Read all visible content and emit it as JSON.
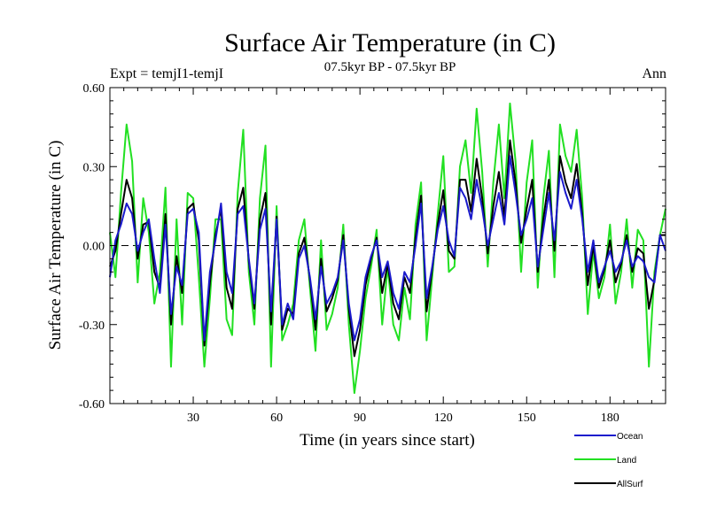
{
  "chart_data": {
    "type": "line",
    "title": "Surface Air Temperature (in C)",
    "subtitle": "07.5kyr BP - 07.5kyr BP",
    "left_label": "Expt = temjI1-temjI",
    "right_label": "Ann",
    "xlabel": "Time (in years since start)",
    "ylabel": "Surface Air Temperature (in C)",
    "xlim": [
      0,
      200
    ],
    "ylim": [
      -0.6,
      0.6
    ],
    "xticks": [
      30,
      60,
      90,
      120,
      150,
      180
    ],
    "yticks": [
      -0.6,
      -0.3,
      0.0,
      0.3,
      0.6
    ],
    "ytick_labels": [
      "-0.60",
      "-0.30",
      "0.00",
      "0.30",
      "0.60"
    ],
    "zero_line": "dashed",
    "legend_position": "bottom-right",
    "series": [
      {
        "name": "Ocean",
        "color": "#1a1acc",
        "x": [
          0,
          2,
          4,
          6,
          8,
          10,
          12,
          14,
          16,
          18,
          20,
          22,
          24,
          26,
          28,
          30,
          32,
          34,
          36,
          38,
          40,
          42,
          44,
          46,
          48,
          50,
          52,
          54,
          56,
          58,
          60,
          62,
          64,
          66,
          68,
          70,
          72,
          74,
          76,
          78,
          80,
          82,
          84,
          86,
          88,
          90,
          92,
          94,
          96,
          98,
          100,
          102,
          104,
          106,
          108,
          110,
          112,
          114,
          116,
          118,
          120,
          122,
          124,
          126,
          128,
          130,
          132,
          134,
          136,
          138,
          140,
          142,
          144,
          146,
          148,
          150,
          152,
          154,
          156,
          158,
          160,
          162,
          164,
          166,
          168,
          170,
          172,
          174,
          176,
          178,
          180,
          182,
          184,
          186,
          188,
          190,
          192,
          194,
          196,
          198,
          200
        ],
        "values": [
          -0.12,
          0.02,
          0.08,
          0.16,
          0.12,
          -0.02,
          0.05,
          0.1,
          -0.05,
          -0.18,
          0.08,
          -0.26,
          -0.08,
          -0.15,
          0.12,
          0.14,
          0.05,
          -0.36,
          -0.1,
          0.02,
          0.16,
          -0.1,
          -0.18,
          0.12,
          0.15,
          -0.05,
          -0.22,
          0.06,
          0.14,
          -0.25,
          0.1,
          -0.3,
          -0.22,
          -0.28,
          -0.05,
          0.0,
          -0.12,
          -0.28,
          -0.08,
          -0.22,
          -0.18,
          -0.12,
          0.02,
          -0.22,
          -0.36,
          -0.28,
          -0.12,
          -0.04,
          0.02,
          -0.12,
          -0.06,
          -0.18,
          -0.24,
          -0.1,
          -0.14,
          0.0,
          0.16,
          -0.2,
          -0.08,
          0.06,
          0.15,
          0.02,
          -0.04,
          0.22,
          0.18,
          0.1,
          0.25,
          0.14,
          0.0,
          0.1,
          0.2,
          0.08,
          0.34,
          0.2,
          0.04,
          0.1,
          0.18,
          -0.08,
          0.06,
          0.2,
          0.02,
          0.28,
          0.2,
          0.14,
          0.25,
          0.1,
          -0.1,
          0.02,
          -0.14,
          -0.08,
          -0.02,
          -0.1,
          -0.06,
          0.02,
          -0.08,
          -0.04,
          -0.06,
          -0.12,
          -0.14,
          0.04,
          -0.02
        ]
      },
      {
        "name": "Land",
        "color": "#22e022",
        "x": [
          0,
          2,
          4,
          6,
          8,
          10,
          12,
          14,
          16,
          18,
          20,
          22,
          24,
          26,
          28,
          30,
          32,
          34,
          36,
          38,
          40,
          42,
          44,
          46,
          48,
          50,
          52,
          54,
          56,
          58,
          60,
          62,
          64,
          66,
          68,
          70,
          72,
          74,
          76,
          78,
          80,
          82,
          84,
          86,
          88,
          90,
          92,
          94,
          96,
          98,
          100,
          102,
          104,
          106,
          108,
          110,
          112,
          114,
          116,
          118,
          120,
          122,
          124,
          126,
          128,
          130,
          132,
          134,
          136,
          138,
          140,
          142,
          144,
          146,
          148,
          150,
          152,
          154,
          156,
          158,
          160,
          162,
          164,
          166,
          168,
          170,
          172,
          174,
          176,
          178,
          180,
          182,
          184,
          186,
          188,
          190,
          192,
          194,
          196,
          198,
          200
        ],
        "values": [
          0.05,
          -0.12,
          0.2,
          0.46,
          0.32,
          -0.14,
          0.18,
          0.05,
          -0.22,
          -0.1,
          0.22,
          -0.46,
          0.1,
          -0.3,
          0.2,
          0.18,
          -0.12,
          -0.46,
          -0.2,
          0.1,
          0.1,
          -0.28,
          -0.34,
          0.2,
          0.44,
          -0.1,
          -0.3,
          0.18,
          0.38,
          -0.46,
          0.15,
          -0.36,
          -0.3,
          -0.22,
          0.02,
          0.1,
          -0.16,
          -0.4,
          0.02,
          -0.32,
          -0.26,
          -0.16,
          0.08,
          -0.3,
          -0.56,
          -0.4,
          -0.2,
          -0.08,
          0.06,
          -0.3,
          -0.08,
          -0.3,
          -0.36,
          -0.16,
          -0.28,
          0.08,
          0.24,
          -0.36,
          -0.12,
          0.12,
          0.34,
          -0.1,
          -0.08,
          0.3,
          0.4,
          0.2,
          0.52,
          0.28,
          -0.08,
          0.24,
          0.46,
          0.18,
          0.54,
          0.32,
          -0.1,
          0.24,
          0.4,
          -0.16,
          0.18,
          0.36,
          -0.12,
          0.46,
          0.34,
          0.28,
          0.44,
          0.18,
          -0.26,
          -0.02,
          -0.2,
          -0.12,
          0.08,
          -0.22,
          -0.1,
          0.1,
          -0.16,
          0.06,
          0.02,
          -0.46,
          -0.1,
          0.04,
          0.14
        ]
      },
      {
        "name": "AllSurf",
        "color": "#000000",
        "x": [
          0,
          2,
          4,
          6,
          8,
          10,
          12,
          14,
          16,
          18,
          20,
          22,
          24,
          26,
          28,
          30,
          32,
          34,
          36,
          38,
          40,
          42,
          44,
          46,
          48,
          50,
          52,
          54,
          56,
          58,
          60,
          62,
          64,
          66,
          68,
          70,
          72,
          74,
          76,
          78,
          80,
          82,
          84,
          86,
          88,
          90,
          92,
          94,
          96,
          98,
          100,
          102,
          104,
          106,
          108,
          110,
          112,
          114,
          116,
          118,
          120,
          122,
          124,
          126,
          128,
          130,
          132,
          134,
          136,
          138,
          140,
          142,
          144,
          146,
          148,
          150,
          152,
          154,
          156,
          158,
          160,
          162,
          164,
          166,
          168,
          170,
          172,
          174,
          176,
          178,
          180,
          182,
          184,
          186,
          188,
          190,
          192,
          194,
          196,
          198,
          200
        ],
        "values": [
          -0.08,
          -0.02,
          0.12,
          0.25,
          0.18,
          -0.05,
          0.08,
          0.09,
          -0.1,
          -0.16,
          0.12,
          -0.3,
          -0.04,
          -0.18,
          0.14,
          0.16,
          0.02,
          -0.38,
          -0.14,
          0.04,
          0.14,
          -0.16,
          -0.24,
          0.14,
          0.22,
          -0.06,
          -0.24,
          0.1,
          0.2,
          -0.3,
          0.11,
          -0.32,
          -0.24,
          -0.26,
          -0.03,
          0.03,
          -0.13,
          -0.32,
          -0.05,
          -0.25,
          -0.2,
          -0.13,
          0.04,
          -0.24,
          -0.42,
          -0.32,
          -0.15,
          -0.05,
          0.03,
          -0.18,
          -0.07,
          -0.22,
          -0.28,
          -0.12,
          -0.18,
          0.03,
          0.19,
          -0.25,
          -0.09,
          0.08,
          0.21,
          -0.02,
          -0.05,
          0.25,
          0.25,
          0.13,
          0.33,
          0.18,
          -0.03,
          0.15,
          0.28,
          0.11,
          0.4,
          0.24,
          0.01,
          0.14,
          0.25,
          -0.1,
          0.1,
          0.25,
          -0.02,
          0.34,
          0.24,
          0.18,
          0.31,
          0.12,
          -0.15,
          0.0,
          -0.16,
          -0.09,
          0.02,
          -0.14,
          -0.07,
          0.04,
          -0.1,
          -0.01,
          -0.03,
          -0.24,
          -0.13,
          0.04,
          0.04
        ]
      }
    ]
  }
}
